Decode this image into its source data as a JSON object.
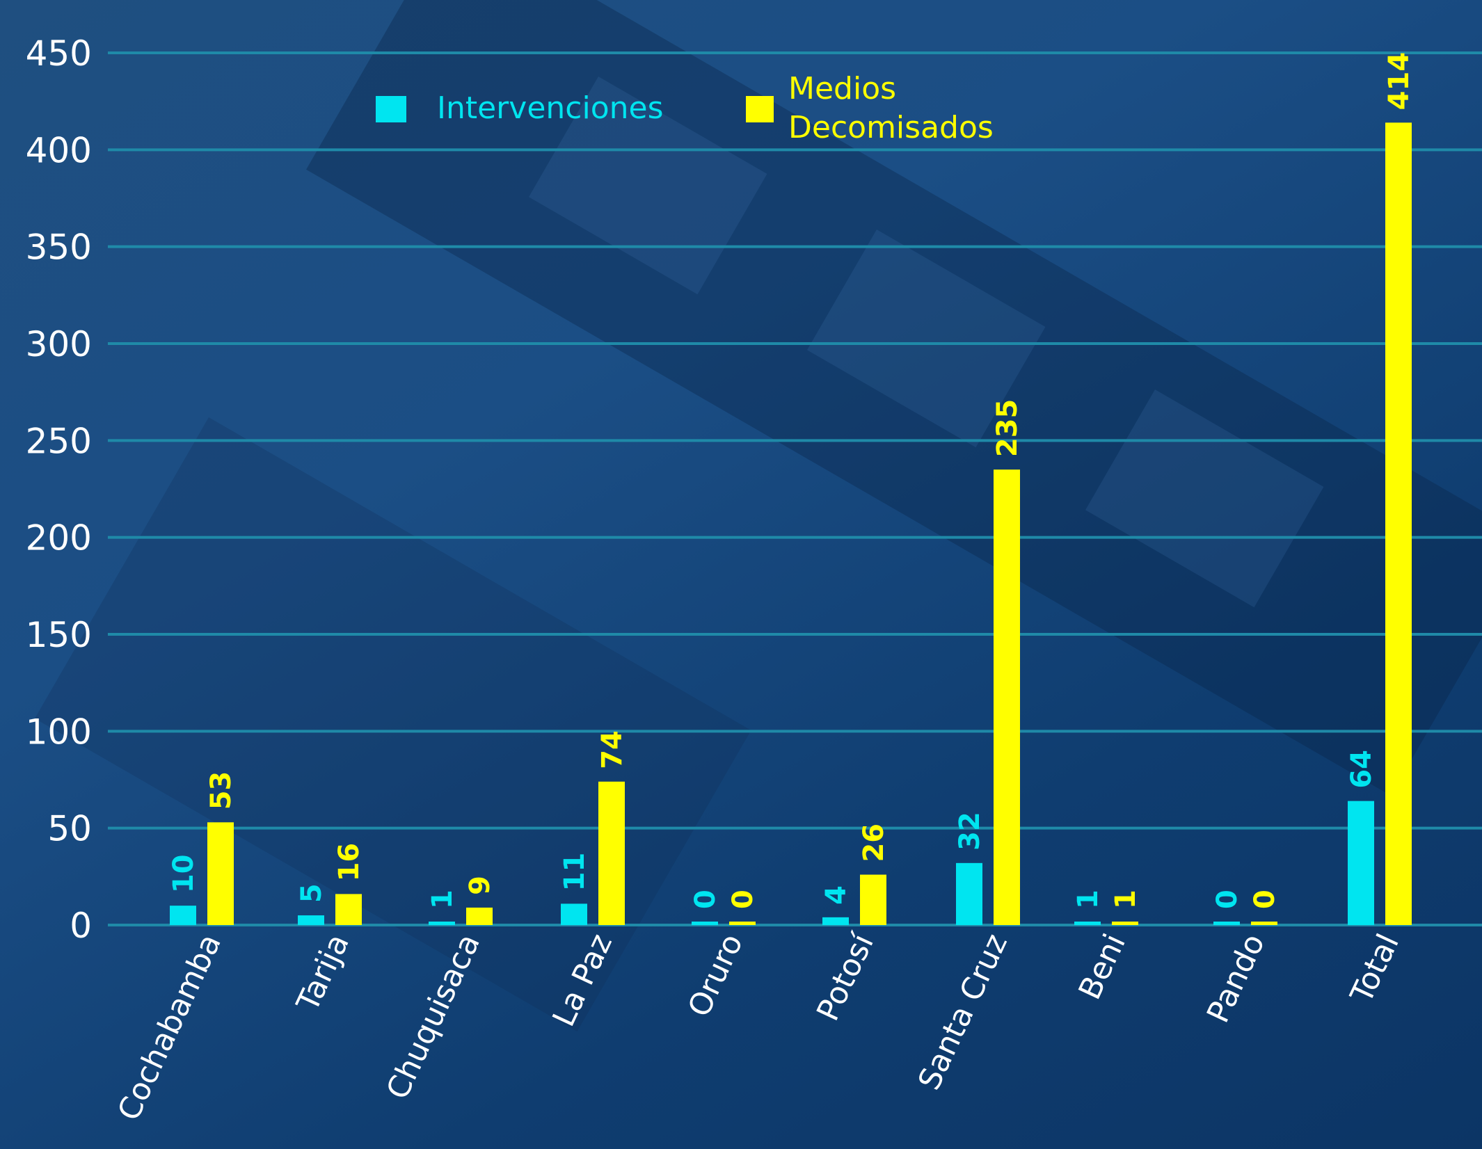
{
  "chart_data": {
    "type": "bar",
    "categories": [
      "Cochabamba",
      "Tarija",
      "Chuquisaca",
      "La Paz",
      "Oruro",
      "Potosí",
      "Santa Cruz",
      "Beni",
      "Pando",
      "Total"
    ],
    "series": [
      {
        "name": "Intervenciones",
        "color": "#00e5f0",
        "values": [
          10,
          5,
          1,
          11,
          0,
          4,
          32,
          1,
          0,
          64
        ]
      },
      {
        "name": "Medios Decomisados",
        "color": "#ffff00",
        "values": [
          53,
          16,
          9,
          74,
          0,
          26,
          235,
          1,
          0,
          414
        ]
      }
    ],
    "y_ticks": [
      "0",
      "50",
      "100",
      "150",
      "200",
      "250",
      "300",
      "350",
      "400",
      "450"
    ],
    "ylim": [
      0,
      450
    ],
    "grid": true,
    "legend_position": "top",
    "gridline_color": "#1f8aa8",
    "text_color": "#ffffff"
  }
}
